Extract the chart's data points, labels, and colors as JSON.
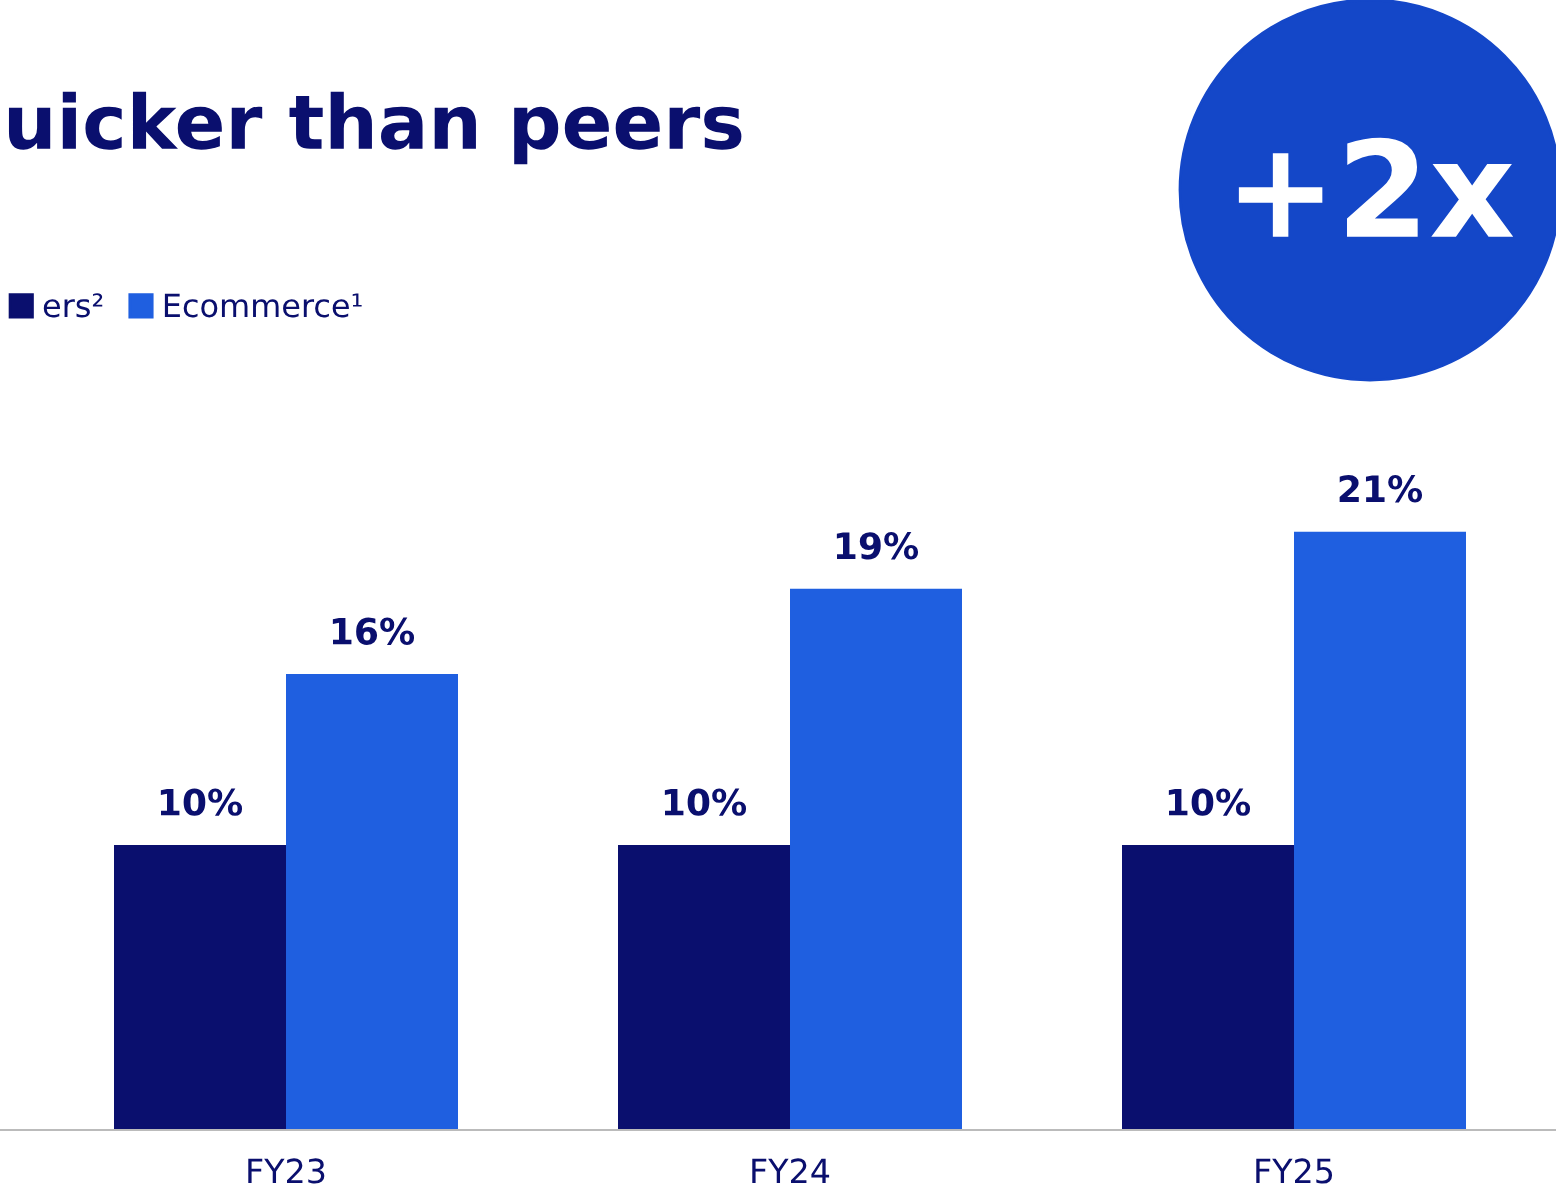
{
  "chart_data": {
    "type": "bar",
    "title": "uicker than peers",
    "categories": [
      "FY23",
      "FY24",
      "FY25"
    ],
    "series": [
      {
        "name": "ers²",
        "color": "#0a0f6e",
        "values": [
          10,
          10,
          10
        ],
        "value_labels": [
          "10%",
          "10%",
          "10%"
        ]
      },
      {
        "name": "Ecommerce¹",
        "color": "#1f5fe0",
        "values": [
          16,
          19,
          21
        ],
        "value_labels": [
          "16%",
          "19%",
          "21%"
        ]
      }
    ],
    "legend": "top left",
    "grid": false,
    "annotations": [
      "+2x"
    ]
  }
}
